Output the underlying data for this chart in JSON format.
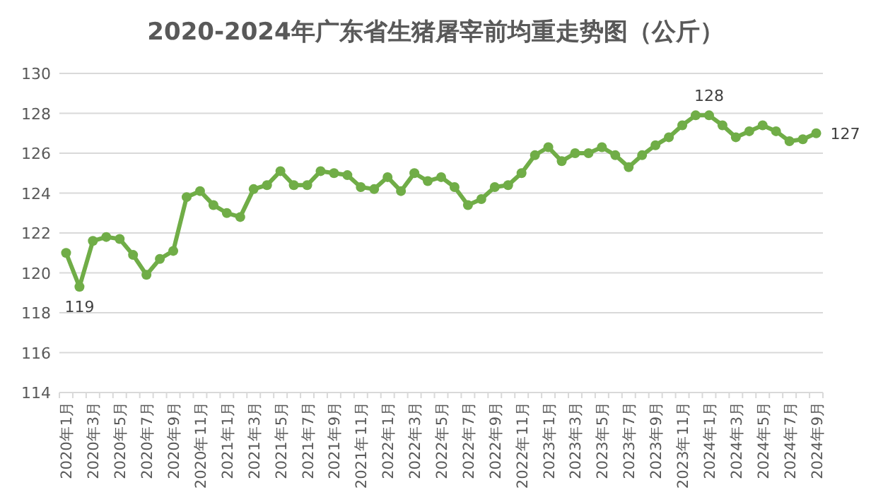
{
  "chart_data": {
    "type": "line",
    "title": "2020-2024年广东省生猪屠宰前均重走势图（公斤）",
    "categories": [
      "2020年1月",
      null,
      "2020年3月",
      null,
      "2020年5月",
      null,
      "2020年7月",
      null,
      "2020年9月",
      null,
      "2020年11月",
      null,
      "2021年1月",
      null,
      "2021年3月",
      null,
      "2021年5月",
      null,
      "2021年7月",
      null,
      "2021年9月",
      null,
      "2021年11月",
      null,
      "2022年1月",
      null,
      "2022年3月",
      null,
      "2022年5月",
      null,
      "2022年7月",
      null,
      "2022年9月",
      null,
      "2022年11月",
      null,
      "2023年1月",
      null,
      "2023年3月",
      null,
      "2023年5月",
      null,
      "2023年7月",
      null,
      "2023年9月",
      null,
      "2023年11月",
      null,
      "2024年1月",
      null,
      "2024年3月",
      null,
      "2024年5月",
      null,
      "2024年7月",
      null,
      "2024年9月"
    ],
    "series": [
      {
        "color": "#70ad47",
        "values": [
          121.0,
          119.3,
          121.6,
          121.8,
          121.7,
          120.9,
          119.9,
          120.7,
          121.1,
          123.8,
          124.1,
          123.4,
          123.0,
          122.8,
          124.2,
          124.4,
          125.1,
          124.4,
          124.4,
          125.1,
          125.0,
          124.9,
          124.3,
          124.2,
          124.8,
          124.1,
          125.0,
          124.6,
          124.8,
          124.3,
          123.4,
          123.7,
          124.3,
          124.4,
          125.0,
          125.9,
          126.3,
          125.6,
          126.0,
          126.0,
          126.3,
          125.9,
          125.3,
          125.9,
          126.4,
          126.8,
          127.4,
          127.9,
          127.9,
          127.4,
          126.8,
          127.1,
          127.4,
          127.1,
          126.6,
          126.7,
          127.0
        ],
        "value_labels": [
          null,
          "119",
          null,
          null,
          null,
          null,
          null,
          null,
          null,
          null,
          null,
          null,
          null,
          null,
          null,
          null,
          null,
          null,
          null,
          null,
          null,
          null,
          null,
          null,
          null,
          null,
          null,
          null,
          null,
          null,
          null,
          null,
          null,
          null,
          null,
          null,
          null,
          null,
          null,
          null,
          null,
          null,
          null,
          null,
          null,
          null,
          null,
          null,
          "128",
          null,
          null,
          null,
          null,
          null,
          null,
          null,
          "127"
        ]
      }
    ],
    "ylim": [
      114,
      130
    ],
    "yticks": [
      114,
      116,
      118,
      120,
      122,
      124,
      126,
      128,
      130
    ],
    "grid": "y",
    "marker": "circle",
    "line_style": "solid"
  }
}
